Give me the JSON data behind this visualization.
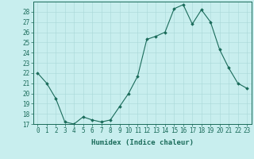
{
  "x": [
    0,
    1,
    2,
    3,
    4,
    5,
    6,
    7,
    8,
    9,
    10,
    11,
    12,
    13,
    14,
    15,
    16,
    17,
    18,
    19,
    20,
    21,
    22,
    23
  ],
  "y": [
    22,
    21,
    19.5,
    17.2,
    17.0,
    17.7,
    17.4,
    17.2,
    17.4,
    18.7,
    20.0,
    21.7,
    25.3,
    25.6,
    26.0,
    28.3,
    28.7,
    26.8,
    28.2,
    27.0,
    24.3,
    22.5,
    21.0,
    20.5
  ],
  "xlim": [
    -0.5,
    23.5
  ],
  "ylim": [
    17,
    29
  ],
  "yticks": [
    17,
    18,
    19,
    20,
    21,
    22,
    23,
    24,
    25,
    26,
    27,
    28
  ],
  "xticks": [
    0,
    1,
    2,
    3,
    4,
    5,
    6,
    7,
    8,
    9,
    10,
    11,
    12,
    13,
    14,
    15,
    16,
    17,
    18,
    19,
    20,
    21,
    22,
    23
  ],
  "xlabel": "Humidex (Indice chaleur)",
  "line_color": "#1a6b5a",
  "marker": "D",
  "marker_size": 1.8,
  "bg_color": "#c8eeee",
  "grid_color": "#a8d8d8",
  "label_color": "#1a6b5a",
  "xlabel_fontsize": 6.5,
  "tick_fontsize": 5.5
}
